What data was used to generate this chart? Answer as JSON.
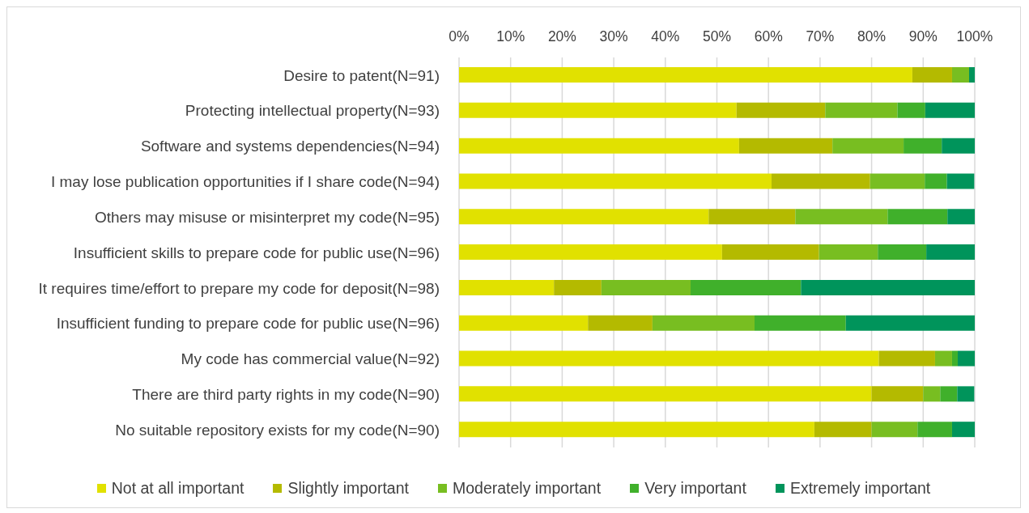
{
  "chart_data": {
    "type": "bar",
    "orientation": "horizontal",
    "stacked": true,
    "categories": [
      "Desire to patent(N=91)",
      "Protecting intellectual property(N=93)",
      "Software and systems dependencies(N=94)",
      "I may lose publication opportunities if I share code(N=94)",
      "Others may misuse or misinterpret my code(N=95)",
      "Insufficient skills to prepare code for public use(N=96)",
      "It requires time/effort to prepare my code for deposit(N=98)",
      "Insufficient funding to prepare code for public use(N=96)",
      "My code has commercial value(N=92)",
      "There are third party rights in my code(N=90)",
      "No suitable repository exists for my code(N=90)"
    ],
    "series": [
      {
        "name": "Not at all important",
        "color": "#e1e100",
        "values": [
          87.9,
          53.8,
          54.3,
          60.6,
          48.4,
          51.0,
          18.4,
          25.0,
          81.4,
          80.0,
          68.9
        ]
      },
      {
        "name": "Slightly important",
        "color": "#b4ba00",
        "values": [
          7.7,
          17.2,
          18.1,
          19.1,
          16.8,
          18.8,
          9.2,
          12.5,
          10.9,
          10.0,
          11.1
        ]
      },
      {
        "name": "Moderately important",
        "color": "#78be21",
        "values": [
          3.3,
          14.0,
          13.8,
          10.6,
          17.9,
          11.4,
          17.3,
          19.8,
          3.3,
          3.3,
          8.9
        ]
      },
      {
        "name": "Very important",
        "color": "#40b02b",
        "values": [
          0,
          5.4,
          7.4,
          4.3,
          11.6,
          9.4,
          21.4,
          17.7,
          1.1,
          3.3,
          6.7
        ]
      },
      {
        "name": "Extremely important",
        "color": "#00945b",
        "values": [
          1.1,
          9.6,
          6.4,
          5.3,
          5.3,
          9.4,
          33.7,
          25.0,
          3.3,
          3.3,
          4.4
        ]
      }
    ],
    "xlim": [
      0,
      100
    ],
    "xticks": [
      {
        "value": 0,
        "label": "0%"
      },
      {
        "value": 10,
        "label": "10%"
      },
      {
        "value": 20,
        "label": "20%"
      },
      {
        "value": 30,
        "label": "30%"
      },
      {
        "value": 40,
        "label": "40%"
      },
      {
        "value": 50,
        "label": "50%"
      },
      {
        "value": 60,
        "label": "60%"
      },
      {
        "value": 70,
        "label": "70%"
      },
      {
        "value": 80,
        "label": "80%"
      },
      {
        "value": 90,
        "label": "90%"
      },
      {
        "value": 100,
        "label": "100%"
      }
    ],
    "grid": "x",
    "legend": "bottom"
  }
}
